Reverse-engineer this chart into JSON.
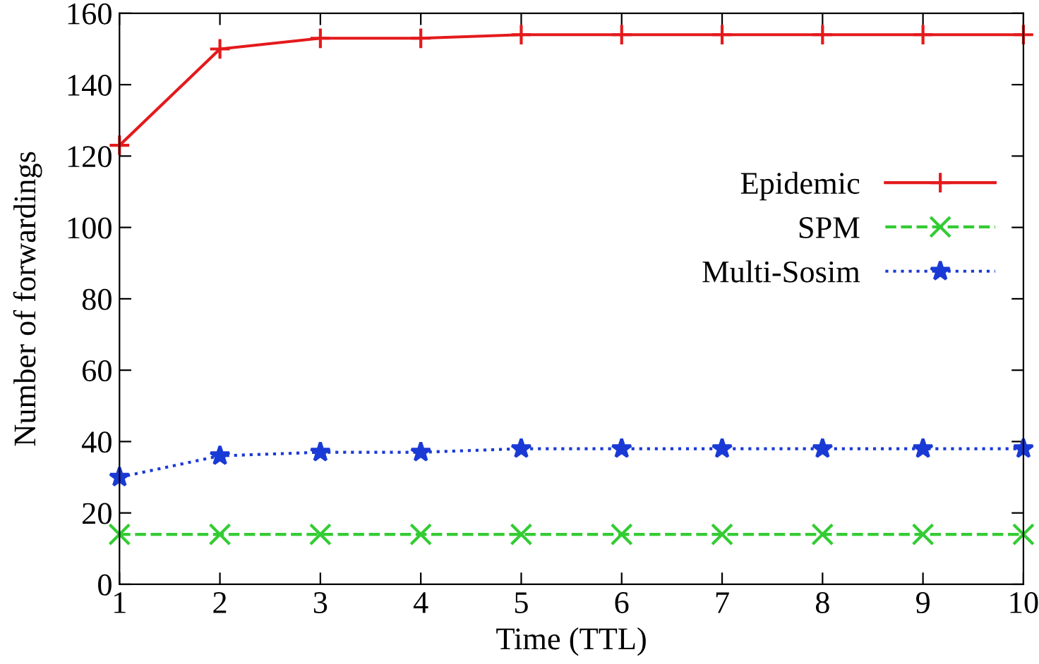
{
  "chart_data": {
    "type": "line",
    "xlabel": "Time (TTL)",
    "ylabel": "Number of forwardings",
    "x": [
      1,
      2,
      3,
      4,
      5,
      6,
      7,
      8,
      9,
      10
    ],
    "series": [
      {
        "name": "Epidemic",
        "color": "#e41a1c",
        "marker": "plus",
        "line_style": "solid",
        "values": [
          123,
          150,
          153,
          153,
          154,
          154,
          154,
          154,
          154,
          154
        ]
      },
      {
        "name": "SPM",
        "color": "#33cc33",
        "marker": "cross",
        "line_style": "dashed",
        "values": [
          14,
          14,
          14,
          14,
          14,
          14,
          14,
          14,
          14,
          14
        ]
      },
      {
        "name": "Multi-Sosim",
        "color": "#1a3ad6",
        "marker": "star",
        "line_style": "dotted",
        "values": [
          30,
          36,
          37,
          37,
          38,
          38,
          38,
          38,
          38,
          38
        ]
      }
    ],
    "xlim": [
      1,
      10
    ],
    "xticks": [
      1,
      2,
      3,
      4,
      5,
      6,
      7,
      8,
      9,
      10
    ],
    "ylim": [
      0,
      160
    ],
    "yticks": [
      0,
      20,
      40,
      60,
      80,
      100,
      120,
      140,
      160
    ],
    "grid": false,
    "legend": "right"
  }
}
